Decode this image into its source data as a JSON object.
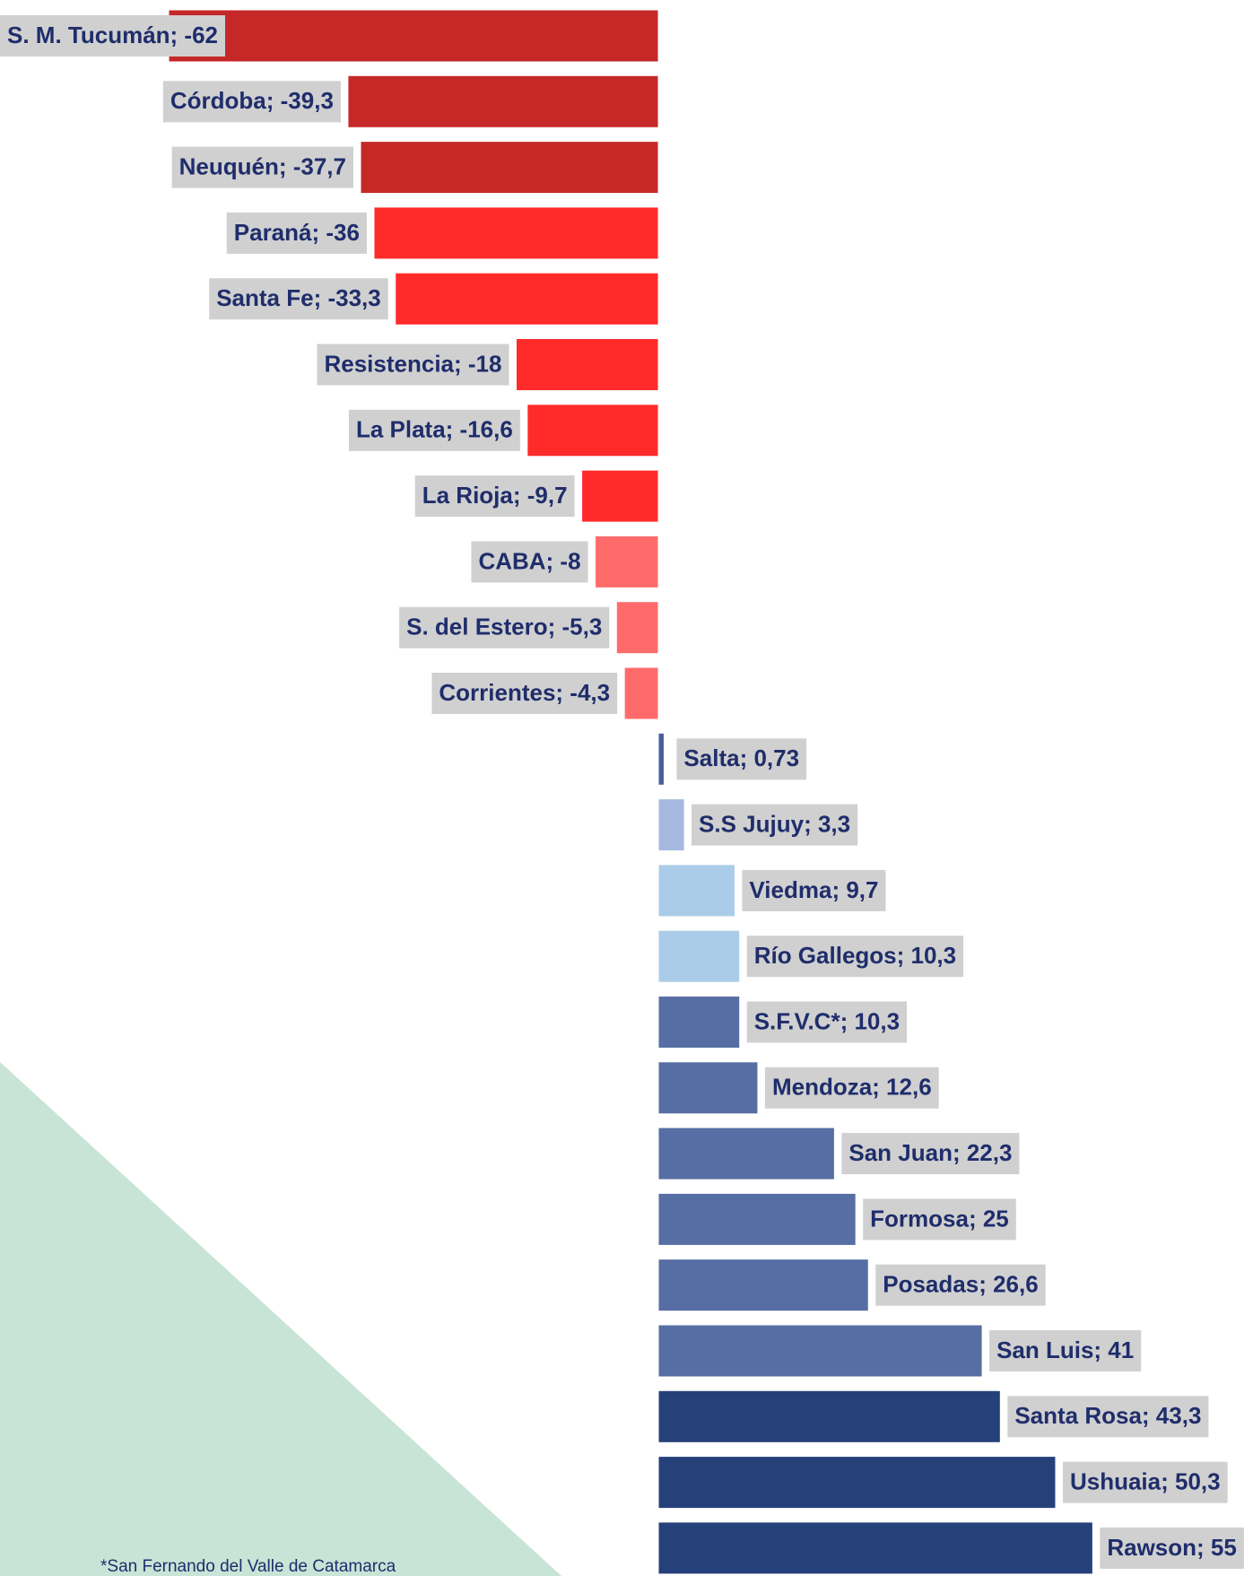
{
  "chart_data": {
    "type": "bar",
    "orientation": "horizontal",
    "values": [
      -62,
      -39.3,
      -37.7,
      -36,
      -33.3,
      -18,
      -16.6,
      -9.7,
      -8,
      -5.3,
      -4.3,
      0.73,
      3.3,
      9.7,
      10.3,
      10.3,
      12.6,
      22.3,
      25,
      26.6,
      41,
      43.3,
      50.3,
      55
    ],
    "value_labels": [
      "S. M. Tucumán; -62",
      "Córdoba; -39,3",
      "Neuquén; -37,7",
      "Paraná; -36",
      "Santa Fe; -33,3",
      "Resistencia; -18",
      "La Plata; -16,6",
      "La Rioja; -9,7",
      "CABA; -8",
      "S. del Estero; -5,3",
      "Corrientes; -4,3",
      "Salta; 0,73",
      "S.S Jujuy; 3,3",
      "Viedma; 9,7",
      "Río Gallegos; 10,3",
      "S.F.V.C*; 10,3",
      "Mendoza; 12,6",
      "San Juan; 22,3",
      "Formosa; 25",
      "Posadas; 26,6",
      "San Luis; 41",
      "Santa Rosa; 43,3",
      "Ushuaia; 50,3",
      "Rawson; 55"
    ],
    "colors": [
      "#c62828",
      "#c62828",
      "#c62828",
      "#ff2a2a",
      "#ff2a2a",
      "#ff2a2a",
      "#ff2a2a",
      "#ff2a2a",
      "#ff6b6b",
      "#ff6b6b",
      "#ff6b6b",
      "#4a5e9a",
      "#a4b8e0",
      "#aacce8",
      "#aacce8",
      "#566ea3",
      "#566ea3",
      "#566ea3",
      "#566ea3",
      "#566ea3",
      "#566ea3",
      "#26407a",
      "#26407a",
      "#26407a"
    ],
    "footnote": "*San Fernando del Valle de Catamarca"
  }
}
